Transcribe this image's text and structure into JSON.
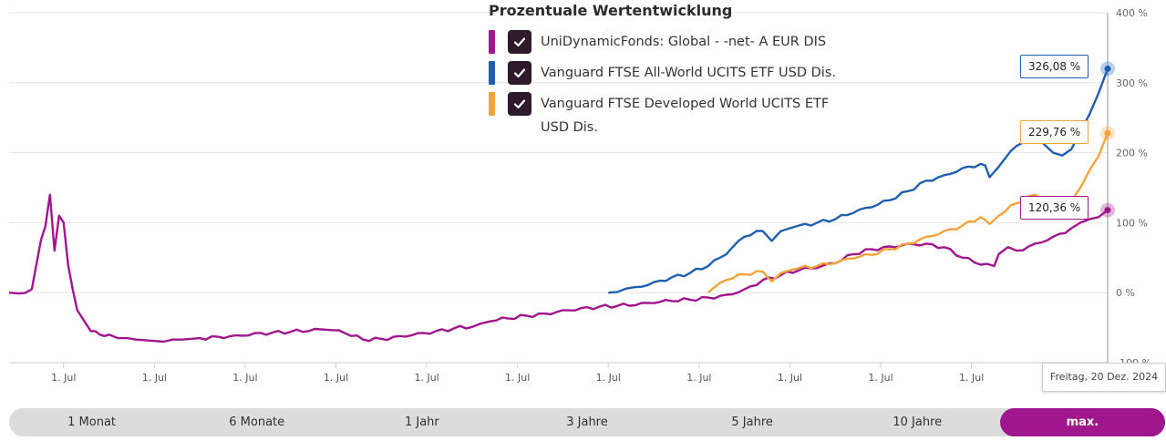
{
  "legend": {
    "title": "Prozentuale Wertentwicklung",
    "items": [
      {
        "label": "UniDynamicFonds: Global - -net- A EUR DIS",
        "color": "#a0168d"
      },
      {
        "label": "Vanguard FTSE All-World UCITS ETF USD Dis.",
        "color": "#1f5fae"
      },
      {
        "label": "Vanguard FTSE Developed World UCITS ETF USD Dis.",
        "color": "#f2a43c"
      }
    ]
  },
  "tooltips": {
    "allworld": "326,08 %",
    "developed": "229,76 %",
    "unidynamic": "120,36 %"
  },
  "date_label": "Freitag, 20 Dez. 2024",
  "range_selector": {
    "buttons": [
      "1 Monat",
      "6 Monate",
      "1 Jahr",
      "3 Jahre",
      "5 Jahre",
      "10 Jahre",
      "max."
    ],
    "active": "max."
  },
  "chart_data": {
    "type": "line",
    "y_ticks": [
      "400 %",
      "300 %",
      "200 %",
      "100 %",
      "0 %",
      "-100 %"
    ],
    "y_tick_values": [
      400,
      300,
      200,
      100,
      0,
      -100
    ],
    "ylim": [
      -100,
      400
    ],
    "x_tick_labels": [
      "1. Jul",
      "1. Jul",
      "1. Jul",
      "1. Jul",
      "1. Jul",
      "1. Jul",
      "1. Jul",
      "1. Jul",
      "1. Jul",
      "1. Jul",
      "1. Jul",
      "1. Jul"
    ],
    "x_tick_years": [
      1998.5,
      1999.5,
      2000.5,
      2001.5,
      2002.5,
      2003.5,
      2004.5,
      2005.5,
      2006.5,
      2007.5,
      2008.5,
      2009.5
    ],
    "xlim": [
      1997.9,
      2010.0
    ],
    "grid": true,
    "series": [
      {
        "name": "UniDynamicFonds: Global - -net- A EUR DIS",
        "color": "#a0168d",
        "x": [
          1997.9,
          1998.0,
          1998.15,
          1998.25,
          1998.3,
          1998.35,
          1998.4,
          1998.45,
          1998.5,
          1998.55,
          1998.6,
          1998.65,
          1998.7,
          1998.75,
          1998.8,
          1998.85,
          1998.9,
          1998.95,
          1999.0,
          1999.1,
          1999.2,
          1999.3,
          1999.4,
          1999.5,
          1999.6,
          1999.7,
          1999.8,
          1999.9,
          2000.0,
          2000.2,
          2000.4,
          2000.6,
          2000.8,
          2001.0,
          2001.2,
          2001.4,
          2001.6,
          2001.8,
          2002.0,
          2002.2,
          2002.4,
          2002.6,
          2002.8,
          2003.0,
          2003.1,
          2003.2,
          2003.4,
          2003.6,
          2003.8,
          2004.0,
          2004.2,
          2004.4,
          2004.6,
          2004.8,
          2005.0,
          2005.2,
          2005.4,
          2005.6,
          2005.8,
          2006.0,
          2006.2,
          2006.4,
          2006.6,
          2006.8,
          2007.0,
          2007.2,
          2007.4,
          2007.6,
          2007.8,
          2008.0,
          2008.2,
          2008.4,
          2008.6,
          2008.75,
          2008.8,
          2008.9,
          2009.0,
          2009.2,
          2009.4,
          2009.6,
          2009.7,
          2009.8,
          2009.9,
          2010.0
        ],
        "values": [
          0,
          -1,
          5,
          75,
          95,
          140,
          60,
          110,
          100,
          40,
          5,
          -25,
          -35,
          -45,
          -55,
          -55,
          -60,
          -62,
          -60,
          -65,
          -65,
          -67,
          -68,
          -69,
          -70,
          -67,
          -67,
          -66,
          -65,
          -63,
          -61,
          -58,
          -57,
          -56,
          -55,
          -53,
          -58,
          -67,
          -66,
          -62,
          -58,
          -55,
          -51,
          -49,
          -44,
          -41,
          -37,
          -33,
          -30,
          -25,
          -22,
          -20,
          -19,
          -18,
          -15,
          -12,
          -10,
          -7,
          -3,
          5,
          18,
          25,
          32,
          35,
          42,
          55,
          62,
          66,
          70,
          70,
          65,
          50,
          40,
          38,
          55,
          65,
          60,
          70,
          80,
          92,
          100,
          105,
          108,
          118
        ]
      },
      {
        "name": "Vanguard FTSE All-World UCITS ETF USD Dis.",
        "color": "#1f5fae",
        "x": [
          2004.5,
          2004.6,
          2004.7,
          2004.8,
          2005.0,
          2005.2,
          2005.4,
          2005.6,
          2005.8,
          2006.0,
          2006.2,
          2006.3,
          2006.4,
          2006.5,
          2006.6,
          2006.8,
          2007.0,
          2007.2,
          2007.4,
          2007.6,
          2007.8,
          2008.0,
          2008.2,
          2008.4,
          2008.6,
          2008.65,
          2008.7,
          2008.8,
          2009.0,
          2009.2,
          2009.3,
          2009.4,
          2009.5,
          2009.6,
          2009.7,
          2009.8,
          2009.9,
          2010.0
        ],
        "values": [
          0,
          1,
          6,
          8,
          15,
          22,
          28,
          38,
          55,
          80,
          88,
          74,
          88,
          92,
          96,
          100,
          105,
          114,
          122,
          132,
          145,
          160,
          168,
          178,
          184,
          182,
          165,
          180,
          210,
          225,
          212,
          200,
          196,
          205,
          230,
          255,
          285,
          320
        ]
      },
      {
        "name": "Vanguard FTSE Developed World UCITS ETF USD Dis.",
        "color": "#f2a43c",
        "x": [
          2005.6,
          2005.8,
          2006.0,
          2006.2,
          2006.3,
          2006.4,
          2006.5,
          2006.6,
          2006.8,
          2007.0,
          2007.2,
          2007.4,
          2007.6,
          2007.8,
          2008.0,
          2008.2,
          2008.4,
          2008.6,
          2008.65,
          2008.7,
          2008.8,
          2009.0,
          2009.2,
          2009.3,
          2009.4,
          2009.5,
          2009.6,
          2009.7,
          2009.8,
          2009.9,
          2010.0
        ],
        "values": [
          0,
          18,
          26,
          30,
          16,
          28,
          32,
          35,
          38,
          42,
          49,
          54,
          62,
          70,
          80,
          88,
          96,
          108,
          104,
          98,
          110,
          128,
          140,
          132,
          126,
          122,
          132,
          150,
          175,
          195,
          228
        ]
      }
    ]
  }
}
